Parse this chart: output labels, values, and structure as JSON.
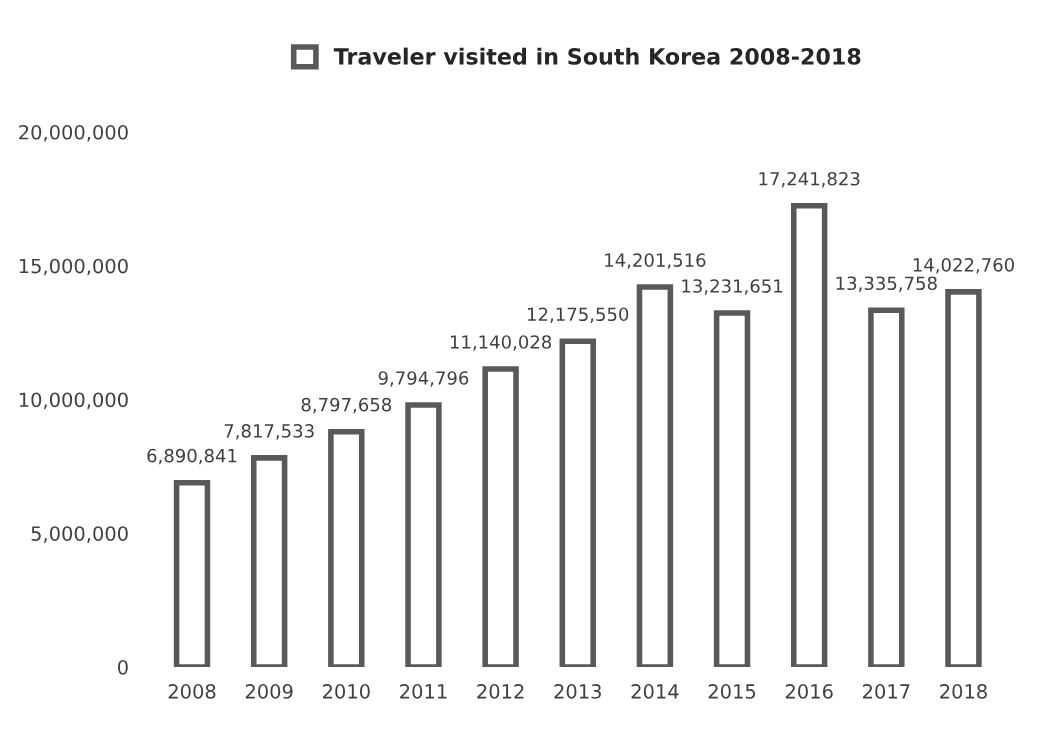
{
  "chart_data": {
    "type": "bar",
    "categories": [
      "2008",
      "2009",
      "2010",
      "2011",
      "2012",
      "2013",
      "2014",
      "2015",
      "2016",
      "2017",
      "2018"
    ],
    "series": [
      {
        "name": "Traveler visited in South Korea 2008-2018",
        "color": "#595959",
        "values": [
          6890841,
          7817533,
          8797658,
          9794796,
          11140028,
          12175550,
          14201516,
          13231651,
          17241823,
          13335758,
          14022760
        ],
        "value_labels": [
          "6,890,841",
          "7,817,533",
          "8,797,658",
          "9,794,796",
          "11,140,028",
          "12,175,550",
          "14,201,516",
          "13,231,651",
          "17,241,823",
          "13,335,758",
          "14,022,760"
        ]
      }
    ],
    "ylim": [
      0,
      20000000
    ],
    "yticks": [
      {
        "value": 0,
        "label": "0"
      },
      {
        "value": 5000000,
        "label": "5,000,000"
      },
      {
        "value": 10000000,
        "label": "10,000,000"
      },
      {
        "value": 15000000,
        "label": "15,000,000"
      },
      {
        "value": 20000000,
        "label": "20,000,000"
      }
    ],
    "legend": "top",
    "grid": false
  }
}
